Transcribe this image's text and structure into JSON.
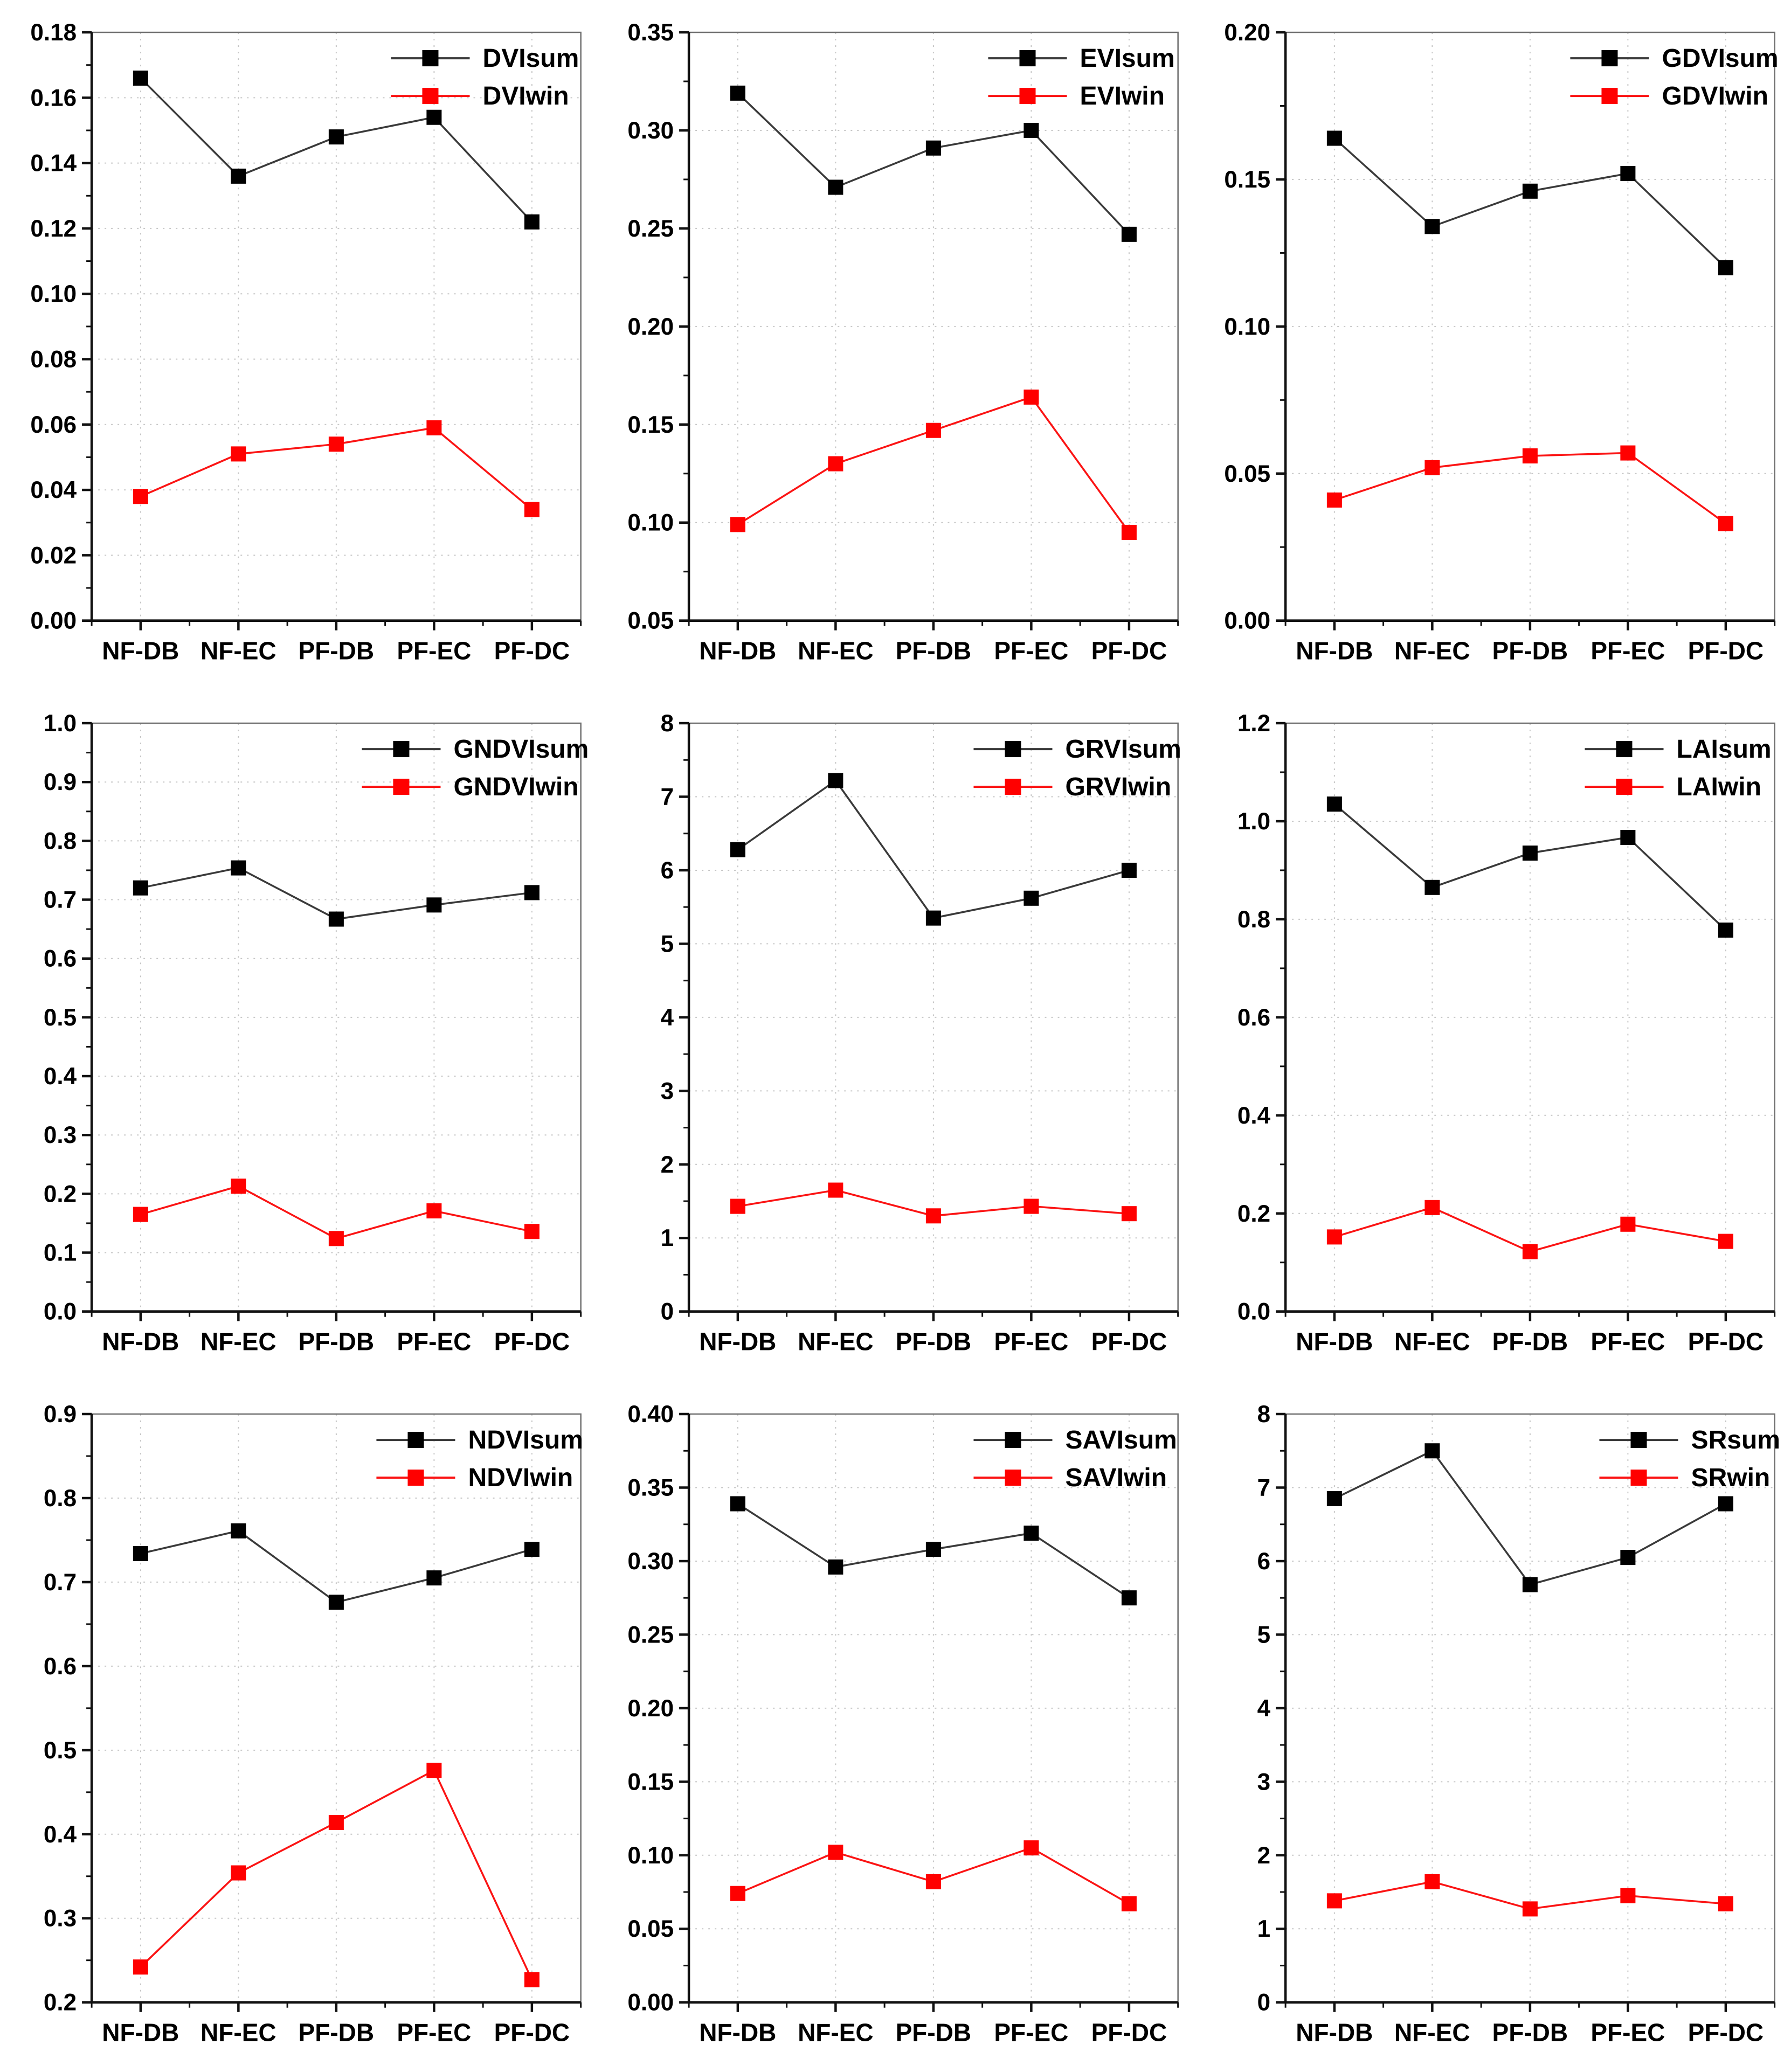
{
  "figure": {
    "background": "#ffffff",
    "categories": [
      "NF-DB",
      "NF-EC",
      "PF-DB",
      "PF-EC",
      "PF-DC"
    ],
    "palette": {
      "sum_marker": "#000000",
      "sum_line": "#3a3a3a",
      "win_marker": "#ff0000",
      "win_line": "#fb1414",
      "grid": "#c6c6c6",
      "axis": "#111111",
      "box": "#6f6f6f",
      "text": "#000000"
    },
    "grid_on": true,
    "legend_position": "top-right"
  },
  "chart_data": [
    {
      "id": "dvi",
      "type": "line",
      "categories": [
        "NF-DB",
        "NF-EC",
        "PF-DB",
        "PF-EC",
        "PF-DC"
      ],
      "series": [
        {
          "name": "DVIsum",
          "role": "sum",
          "values": [
            0.166,
            0.136,
            0.148,
            0.154,
            0.122
          ]
        },
        {
          "name": "DVIwin",
          "role": "win",
          "values": [
            0.038,
            0.051,
            0.054,
            0.059,
            0.034
          ]
        }
      ],
      "ylim": [
        0.0,
        0.18
      ],
      "ytick_step": 0.02,
      "ydecimals": 2,
      "xlabel": "",
      "ylabel": "",
      "title": ""
    },
    {
      "id": "evi",
      "type": "line",
      "categories": [
        "NF-DB",
        "NF-EC",
        "PF-DB",
        "PF-EC",
        "PF-DC"
      ],
      "series": [
        {
          "name": "EVIsum",
          "role": "sum",
          "values": [
            0.319,
            0.271,
            0.291,
            0.3,
            0.247
          ]
        },
        {
          "name": "EVIwin",
          "role": "win",
          "values": [
            0.099,
            0.13,
            0.147,
            0.164,
            0.095
          ]
        }
      ],
      "ylim": [
        0.05,
        0.35
      ],
      "ytick_step": 0.05,
      "ydecimals": 2,
      "xlabel": "",
      "ylabel": "",
      "title": ""
    },
    {
      "id": "gdvi",
      "type": "line",
      "categories": [
        "NF-DB",
        "NF-EC",
        "PF-DB",
        "PF-EC",
        "PF-DC"
      ],
      "series": [
        {
          "name": "GDVIsum",
          "role": "sum",
          "values": [
            0.164,
            0.134,
            0.146,
            0.152,
            0.12
          ]
        },
        {
          "name": "GDVIwin",
          "role": "win",
          "values": [
            0.041,
            0.052,
            0.056,
            0.057,
            0.033
          ]
        }
      ],
      "ylim": [
        0.0,
        0.2
      ],
      "ytick_step": 0.05,
      "ydecimals": 2,
      "xlabel": "",
      "ylabel": "",
      "title": ""
    },
    {
      "id": "gndvi",
      "type": "line",
      "categories": [
        "NF-DB",
        "NF-EC",
        "PF-DB",
        "PF-EC",
        "PF-DC"
      ],
      "series": [
        {
          "name": "GNDVIsum",
          "role": "sum",
          "values": [
            0.72,
            0.754,
            0.667,
            0.691,
            0.712
          ]
        },
        {
          "name": "GNDVIwin",
          "role": "win",
          "values": [
            0.165,
            0.213,
            0.124,
            0.171,
            0.136
          ]
        }
      ],
      "ylim": [
        0.0,
        1.0
      ],
      "ytick_step": 0.1,
      "ydecimals": 1,
      "xlabel": "",
      "ylabel": "",
      "title": ""
    },
    {
      "id": "grvi",
      "type": "line",
      "categories": [
        "NF-DB",
        "NF-EC",
        "PF-DB",
        "PF-EC",
        "PF-DC"
      ],
      "series": [
        {
          "name": "GRVIsum",
          "role": "sum",
          "values": [
            6.28,
            7.22,
            5.35,
            5.62,
            6.0
          ]
        },
        {
          "name": "GRVIwin",
          "role": "win",
          "values": [
            1.43,
            1.65,
            1.3,
            1.43,
            1.33
          ]
        }
      ],
      "ylim": [
        0,
        8
      ],
      "ytick_step": 1,
      "ydecimals": 0,
      "xlabel": "",
      "ylabel": "",
      "title": ""
    },
    {
      "id": "lai",
      "type": "line",
      "categories": [
        "NF-DB",
        "NF-EC",
        "PF-DB",
        "PF-EC",
        "PF-DC"
      ],
      "series": [
        {
          "name": "LAIsum",
          "role": "sum",
          "values": [
            1.035,
            0.865,
            0.935,
            0.967,
            0.778
          ]
        },
        {
          "name": "LAIwin",
          "role": "win",
          "values": [
            0.152,
            0.212,
            0.122,
            0.178,
            0.143
          ]
        }
      ],
      "ylim": [
        0.0,
        1.2
      ],
      "ytick_step": 0.2,
      "ydecimals": 1,
      "xlabel": "",
      "ylabel": "",
      "title": ""
    },
    {
      "id": "ndvi",
      "type": "line",
      "categories": [
        "NF-DB",
        "NF-EC",
        "PF-DB",
        "PF-EC",
        "PF-DC"
      ],
      "series": [
        {
          "name": "NDVIsum",
          "role": "sum",
          "values": [
            0.734,
            0.761,
            0.676,
            0.705,
            0.739
          ]
        },
        {
          "name": "NDVIwin",
          "role": "win",
          "values": [
            0.242,
            0.354,
            0.414,
            0.476,
            0.227
          ]
        }
      ],
      "ylim": [
        0.2,
        0.9
      ],
      "ytick_step": 0.1,
      "ydecimals": 1,
      "xlabel": "",
      "ylabel": "",
      "title": ""
    },
    {
      "id": "savi",
      "type": "line",
      "categories": [
        "NF-DB",
        "NF-EC",
        "PF-DB",
        "PF-EC",
        "PF-DC"
      ],
      "series": [
        {
          "name": "SAVIsum",
          "role": "sum",
          "values": [
            0.339,
            0.296,
            0.308,
            0.319,
            0.275
          ]
        },
        {
          "name": "SAVIwin",
          "role": "win",
          "values": [
            0.074,
            0.102,
            0.082,
            0.105,
            0.067
          ]
        }
      ],
      "ylim": [
        0.0,
        0.4
      ],
      "ytick_step": 0.05,
      "ydecimals": 2,
      "xlabel": "",
      "ylabel": "",
      "title": ""
    },
    {
      "id": "sr",
      "type": "line",
      "categories": [
        "NF-DB",
        "NF-EC",
        "PF-DB",
        "PF-EC",
        "PF-DC"
      ],
      "series": [
        {
          "name": "SRsum",
          "role": "sum",
          "values": [
            6.85,
            7.5,
            5.68,
            6.05,
            6.78
          ]
        },
        {
          "name": "SRwin",
          "role": "win",
          "values": [
            1.38,
            1.64,
            1.27,
            1.45,
            1.34
          ]
        }
      ],
      "ylim": [
        0,
        8
      ],
      "ytick_step": 1,
      "ydecimals": 0,
      "xlabel": "",
      "ylabel": "",
      "title": ""
    }
  ]
}
